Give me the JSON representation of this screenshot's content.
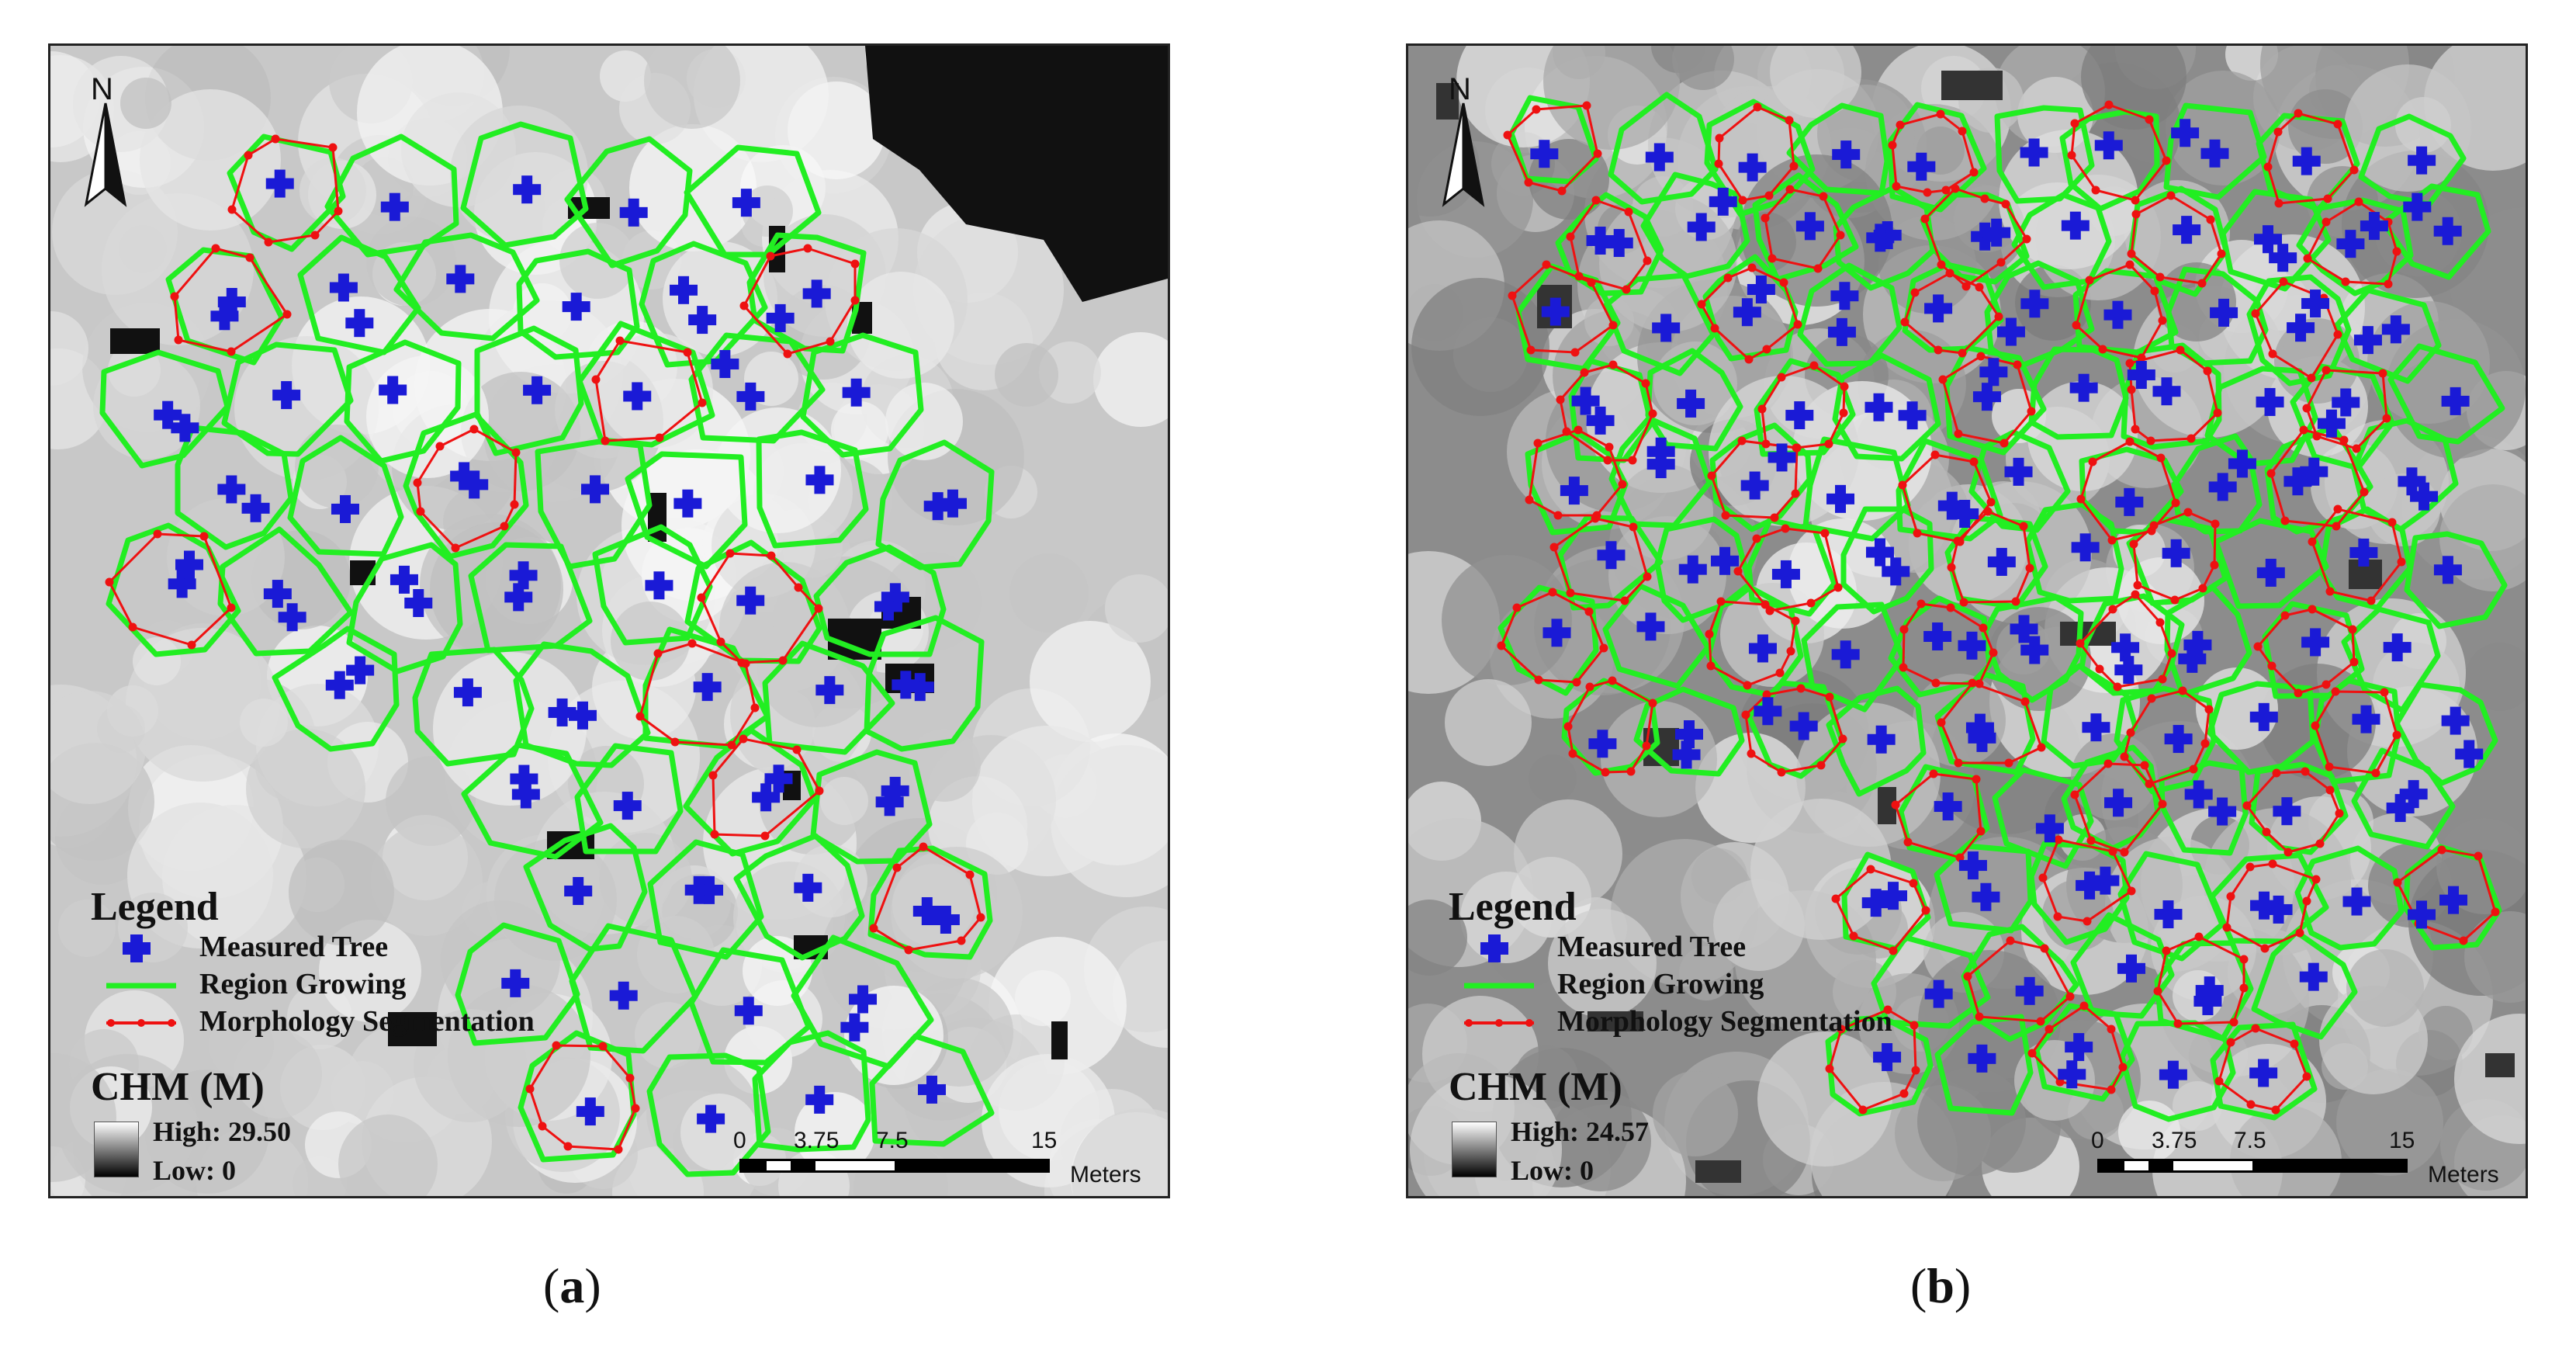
{
  "colors": {
    "tree_marker": "#1a1ad6",
    "region_growing": "#22ee22",
    "morphology": "#ee1111",
    "morphology_outer": "#8a5a10"
  },
  "legend": {
    "title": "Legend",
    "items": [
      {
        "label": "Measured Tree",
        "icon": "plus-marker-icon"
      },
      {
        "label": "Region Growing",
        "icon": "green-line-icon"
      },
      {
        "label": "Morphology Segmentation",
        "icon": "red-dotted-line-icon"
      }
    ]
  },
  "panels": [
    {
      "caption_letter": "a",
      "north_label": "N",
      "chm": {
        "title": "CHM (M)",
        "high": "High: 29.50",
        "low": "Low: 0"
      },
      "scale": {
        "ticks": [
          "0",
          "3.75",
          "7.5",
          "15"
        ],
        "units": "Meters"
      }
    },
    {
      "caption_letter": "b",
      "north_label": "N",
      "chm": {
        "title": "CHM (M)",
        "high": "High: 24.57",
        "low": "Low: 0"
      },
      "scale": {
        "ticks": [
          "0",
          "3.75",
          "7.5",
          "15"
        ],
        "units": "Meters"
      }
    }
  ]
}
